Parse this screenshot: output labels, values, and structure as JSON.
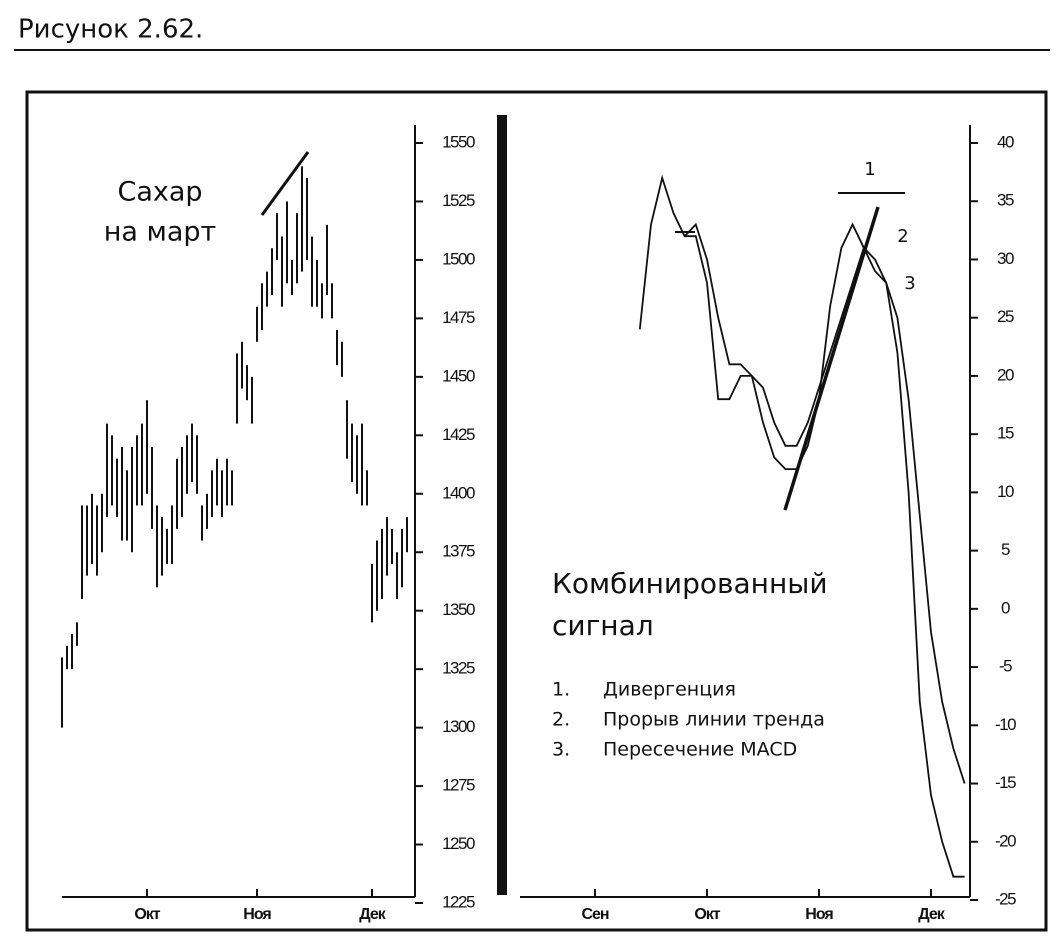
{
  "figure_label": "Рисунок 2.62.",
  "chart_data": [
    {
      "type": "ohlc",
      "title_lines": [
        "Сахар",
        "на март"
      ],
      "categories": [
        null,
        null,
        null,
        null,
        null,
        null,
        null,
        null,
        null,
        null,
        null,
        null,
        null,
        null,
        null,
        null,
        null,
        "Окт",
        null,
        null,
        null,
        null,
        null,
        null,
        null,
        null,
        null,
        null,
        null,
        null,
        null,
        null,
        null,
        null,
        null,
        null,
        null,
        null,
        null,
        "Ноя",
        null,
        null,
        null,
        null,
        null,
        null,
        null,
        null,
        null,
        null,
        null,
        null,
        null,
        null,
        null,
        null,
        null,
        null,
        null,
        null,
        null,
        null,
        "Дек",
        null,
        null,
        null,
        null,
        null,
        null,
        null
      ],
      "high": [
        1330,
        1335,
        1340,
        1345,
        1395,
        1395,
        1400,
        1395,
        1400,
        1430,
        1425,
        1415,
        1420,
        1410,
        1420,
        1425,
        1430,
        1440,
        1420,
        1395,
        1390,
        1385,
        1395,
        1415,
        1420,
        1425,
        1430,
        1425,
        1395,
        1400,
        1410,
        1415,
        1410,
        1415,
        1410,
        1460,
        1465,
        1455,
        1450,
        1480,
        1490,
        1495,
        1505,
        1520,
        1510,
        1525,
        1500,
        1520,
        1540,
        1535,
        1510,
        1500,
        1490,
        1515,
        1490,
        1470,
        1465,
        1440,
        1430,
        1425,
        1430,
        1410,
        1370,
        1380,
        1385,
        1390,
        1385,
        1375,
        1385,
        1390
      ],
      "low": [
        1300,
        1325,
        1325,
        1335,
        1355,
        1365,
        1370,
        1365,
        1375,
        1390,
        1395,
        1390,
        1380,
        1380,
        1375,
        1395,
        1395,
        1400,
        1385,
        1360,
        1365,
        1370,
        1370,
        1385,
        1390,
        1400,
        1405,
        1400,
        1380,
        1385,
        1390,
        1395,
        1390,
        1395,
        1395,
        1430,
        1445,
        1440,
        1430,
        1465,
        1470,
        1480,
        1485,
        1500,
        1480,
        1490,
        1485,
        1490,
        1495,
        1500,
        1480,
        1480,
        1475,
        1485,
        1475,
        1455,
        1450,
        1415,
        1405,
        1400,
        1395,
        1395,
        1345,
        1350,
        1355,
        1365,
        1370,
        1355,
        1360,
        1375
      ],
      "color": "#111111",
      "ylim": [
        1225,
        1550
      ],
      "yticks": [
        1225,
        1250,
        1275,
        1300,
        1325,
        1350,
        1375,
        1400,
        1425,
        1450,
        1475,
        1500,
        1525,
        1550
      ]
    },
    {
      "type": "line",
      "title_lines": [
        "Комбинированный",
        "сигнал"
      ],
      "notes": [
        {
          "num": "1.",
          "text": "Дивергенция"
        },
        {
          "num": "2.",
          "text": "Прорыв линии тренда"
        },
        {
          "num": "3.",
          "text": "Пересечение MACD"
        }
      ],
      "annotations": [
        "1",
        "2",
        "3"
      ],
      "categories": [
        "Сен",
        null,
        null,
        null,
        null,
        null,
        null,
        null,
        null,
        null,
        "Окт",
        null,
        null,
        null,
        null,
        null,
        null,
        null,
        null,
        null,
        "Ноя",
        null,
        null,
        null,
        null,
        null,
        null,
        null,
        null,
        null,
        "Дек",
        null,
        null,
        null
      ],
      "series": [
        {
          "color": "#111111",
          "values": [
            null,
            null,
            null,
            null,
            24,
            33,
            37,
            34,
            32,
            32,
            28,
            18,
            18,
            20,
            20,
            16,
            13,
            12,
            12,
            14,
            18,
            26,
            31,
            33,
            31,
            30,
            28,
            22,
            10,
            -8,
            -16,
            -20,
            -23,
            -23
          ]
        },
        {
          "color": "#111111",
          "values": [
            null,
            null,
            null,
            null,
            null,
            null,
            null,
            null,
            32,
            33,
            30,
            25,
            21,
            21,
            20,
            19,
            16,
            14,
            14,
            16,
            19,
            22,
            25,
            28,
            31,
            29,
            28,
            25,
            18,
            8,
            -2,
            -8,
            -12,
            -15
          ]
        }
      ],
      "ylim": [
        -25,
        40
      ],
      "yticks": [
        -25,
        -20,
        -15,
        -10,
        -5,
        0,
        5,
        10,
        15,
        20,
        25,
        30,
        35,
        40
      ]
    }
  ]
}
